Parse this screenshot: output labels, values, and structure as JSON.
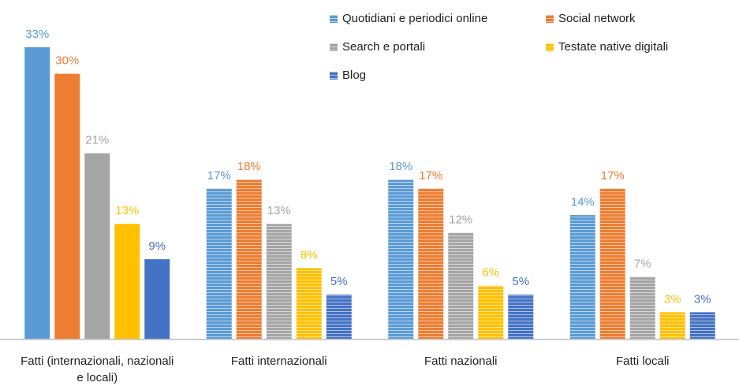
{
  "chart_data": {
    "type": "bar",
    "categories": [
      "Fatti (internazionali, nazionali e locali)",
      "Fatti internazionali",
      "Fatti nazionali",
      "Fatti locali"
    ],
    "series": [
      {
        "name": "Quotidiani e periodici online",
        "color": "#5b9bd5",
        "values": [
          33,
          17,
          18,
          14
        ],
        "value_labels": [
          "33%",
          "17%",
          "18%",
          "14%"
        ]
      },
      {
        "name": "Social network",
        "color": "#ed7d31",
        "values": [
          30,
          18,
          17,
          17
        ],
        "value_labels": [
          "30%",
          "18%",
          "17%",
          "17%"
        ]
      },
      {
        "name": "Search e portali",
        "color": "#a5a5a5",
        "values": [
          21,
          13,
          12,
          7
        ],
        "value_labels": [
          "21%",
          "13%",
          "12%",
          "7%"
        ]
      },
      {
        "name": "Testate native digitali",
        "color": "#ffc000",
        "values": [
          13,
          8,
          6,
          3
        ],
        "value_labels": [
          "13%",
          "8%",
          "6%",
          "3%"
        ]
      },
      {
        "name": "Blog",
        "color": "#4472c4",
        "values": [
          9,
          5,
          5,
          3
        ],
        "value_labels": [
          "9%",
          "5%",
          "5%",
          "3%"
        ]
      }
    ],
    "ylim": [
      0,
      33
    ]
  }
}
